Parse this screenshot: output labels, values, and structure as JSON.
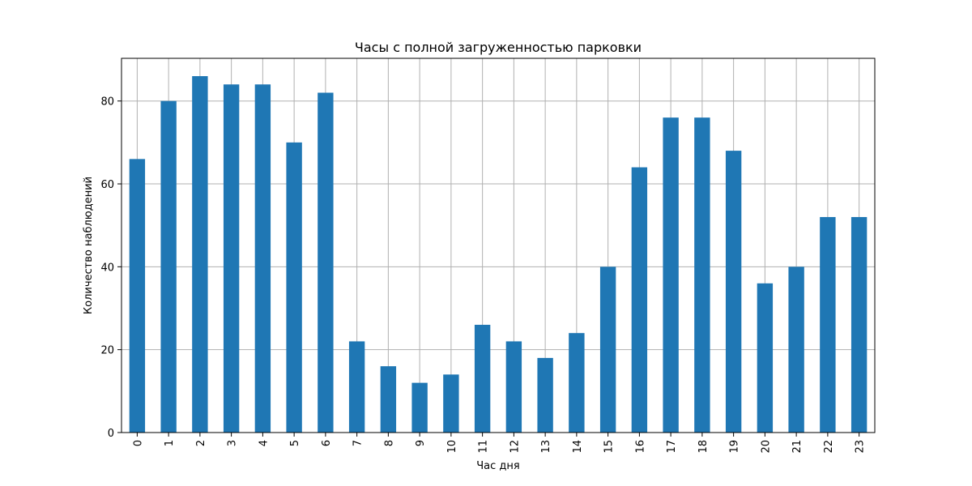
{
  "chart_data": {
    "type": "bar",
    "title": "Часы с полной загруженностью парковки",
    "xlabel": "Час дня",
    "ylabel": "Количество наблюдений",
    "categories": [
      "0",
      "1",
      "2",
      "3",
      "4",
      "5",
      "6",
      "7",
      "8",
      "9",
      "10",
      "11",
      "12",
      "13",
      "14",
      "15",
      "16",
      "17",
      "18",
      "19",
      "20",
      "21",
      "22",
      "23"
    ],
    "values": [
      66,
      80,
      86,
      84,
      84,
      70,
      82,
      22,
      16,
      12,
      14,
      26,
      22,
      18,
      24,
      40,
      64,
      76,
      76,
      68,
      36,
      40,
      52,
      52
    ],
    "yticks": [
      "0",
      "20",
      "40",
      "60",
      "80"
    ],
    "ylim": [
      0,
      90.3
    ],
    "grid": true,
    "bar_color": "#1f77b4",
    "grid_color": "#b0b0b0"
  }
}
